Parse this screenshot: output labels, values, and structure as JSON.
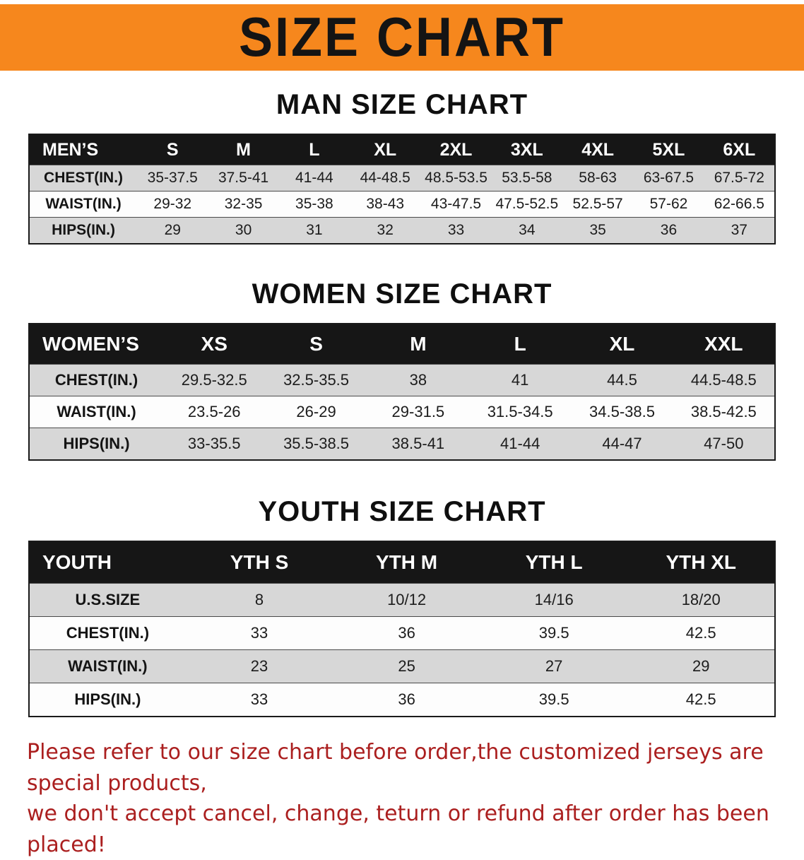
{
  "banner": {
    "title": "SIZE CHART",
    "background_color": "#f6871d",
    "text_color": "#141414"
  },
  "men": {
    "heading": "MAN SIZE CHART",
    "header": [
      "MEN’S",
      "S",
      "M",
      "L",
      "XL",
      "2XL",
      "3XL",
      "4XL",
      "5XL",
      "6XL"
    ],
    "rows": [
      {
        "label": "CHEST(IN.)",
        "values": [
          "35-37.5",
          "37.5-41",
          "41-44",
          "44-48.5",
          "48.5-53.5",
          "53.5-58",
          "58-63",
          "63-67.5",
          "67.5-72"
        ]
      },
      {
        "label": "WAIST(IN.)",
        "values": [
          "29-32",
          "32-35",
          "35-38",
          "38-43",
          "43-47.5",
          "47.5-52.5",
          "52.5-57",
          "57-62",
          "62-66.5"
        ]
      },
      {
        "label": "HIPS(IN.)",
        "values": [
          "29",
          "30",
          "31",
          "32",
          "33",
          "34",
          "35",
          "36",
          "37"
        ]
      }
    ]
  },
  "women": {
    "heading": "WOMEN SIZE CHART",
    "header": [
      "WOMEN’S",
      "XS",
      "S",
      "M",
      "L",
      "XL",
      "XXL"
    ],
    "rows": [
      {
        "label": "CHEST(IN.)",
        "values": [
          "29.5-32.5",
          "32.5-35.5",
          "38",
          "41",
          "44.5",
          "44.5-48.5"
        ]
      },
      {
        "label": "WAIST(IN.)",
        "values": [
          "23.5-26",
          "26-29",
          "29-31.5",
          "31.5-34.5",
          "34.5-38.5",
          "38.5-42.5"
        ]
      },
      {
        "label": "HIPS(IN.)",
        "values": [
          "33-35.5",
          "35.5-38.5",
          "38.5-41",
          "41-44",
          "44-47",
          "47-50"
        ]
      }
    ]
  },
  "youth": {
    "heading": "YOUTH SIZE CHART",
    "header": [
      "YOUTH",
      "YTH S",
      "YTH M",
      "YTH L",
      "YTH XL"
    ],
    "rows": [
      {
        "label": "U.S.SIZE",
        "values": [
          "8",
          "10/12",
          "14/16",
          "18/20"
        ]
      },
      {
        "label": "CHEST(IN.)",
        "values": [
          "33",
          "36",
          "39.5",
          "42.5"
        ]
      },
      {
        "label": "WAIST(IN.)",
        "values": [
          "23",
          "25",
          "27",
          "29"
        ]
      },
      {
        "label": "HIPS(IN.)",
        "values": [
          "33",
          "36",
          "39.5",
          "42.5"
        ]
      }
    ]
  },
  "disclaimer": {
    "line1": "Please refer to our size chart before order,the customized jerseys are special products,",
    "line2": "we don't accept cancel, change, teturn or refund after order has been placed!",
    "text_color": "#ab1f1f"
  },
  "colors": {
    "row_stripe": "#d7d7d7",
    "table_header_bg": "#161616",
    "table_border": "#1a1a1a"
  }
}
